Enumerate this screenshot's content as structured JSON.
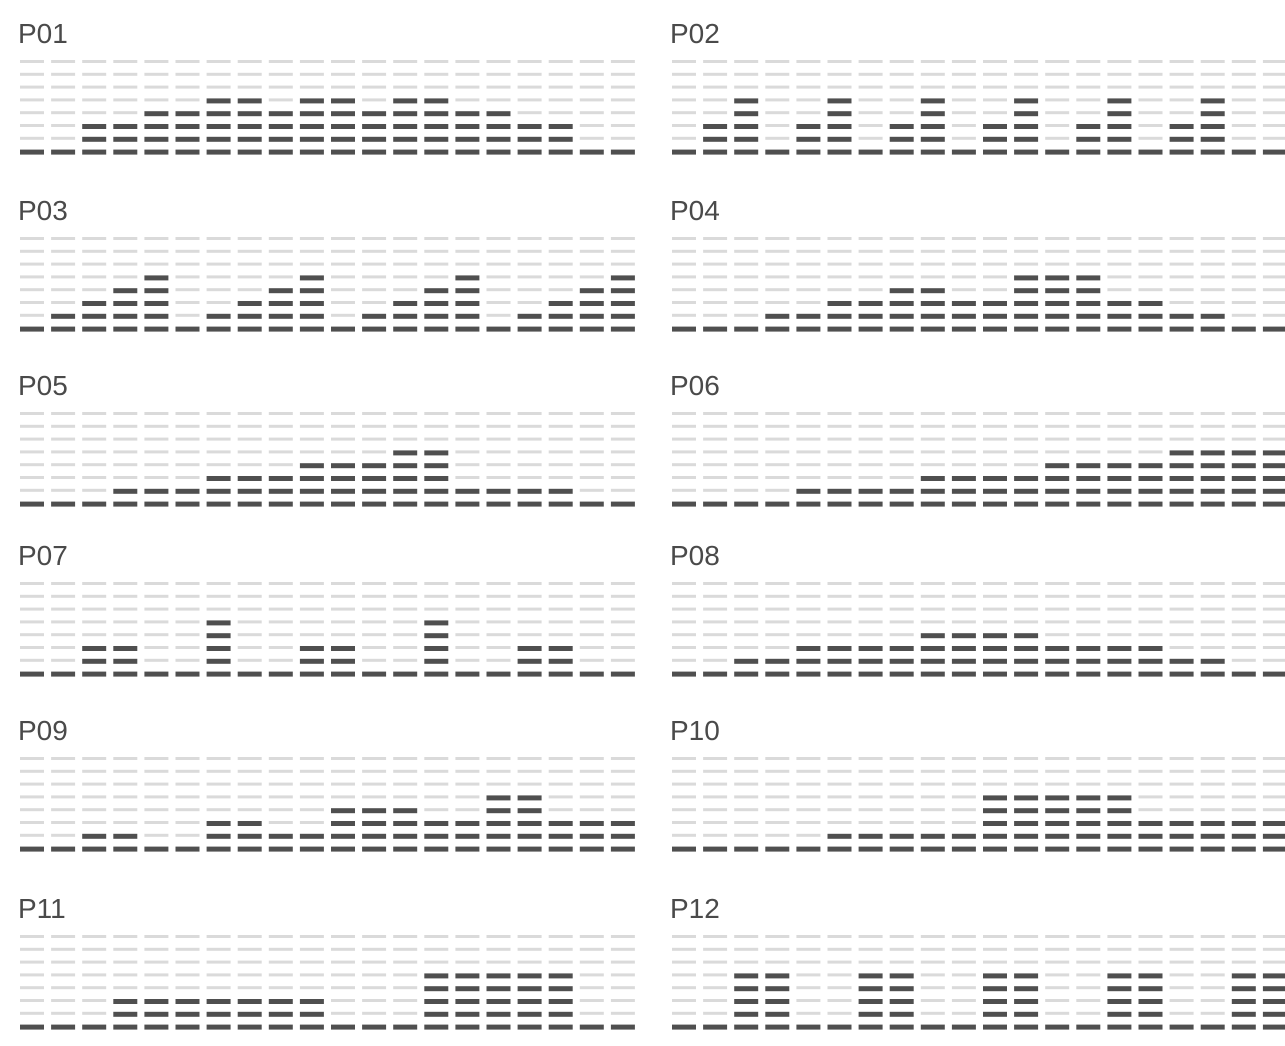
{
  "colors": {
    "active": "#4f4f4f",
    "inactive": "#dadada",
    "background": "#ffffff",
    "label": "#4a4a4a"
  },
  "chart_data": [
    {
      "type": "bar",
      "title": "P01",
      "segments_per_bar": 8,
      "values": [
        1,
        1,
        3,
        3,
        4,
        4,
        5,
        5,
        4,
        5,
        5,
        4,
        5,
        5,
        4,
        4,
        3,
        3,
        1,
        1
      ]
    },
    {
      "type": "bar",
      "title": "P02",
      "segments_per_bar": 8,
      "values": [
        1,
        3,
        5,
        1,
        3,
        5,
        1,
        3,
        5,
        1,
        3,
        5,
        1,
        3,
        5,
        1,
        3,
        5,
        1,
        1
      ]
    },
    {
      "type": "bar",
      "title": "P03",
      "segments_per_bar": 8,
      "values": [
        1,
        2,
        3,
        4,
        5,
        1,
        2,
        3,
        4,
        5,
        1,
        2,
        3,
        4,
        5,
        1,
        2,
        3,
        4,
        5
      ]
    },
    {
      "type": "bar",
      "title": "P04",
      "segments_per_bar": 8,
      "values": [
        1,
        1,
        1,
        2,
        2,
        3,
        3,
        4,
        4,
        3,
        3,
        5,
        5,
        5,
        3,
        3,
        2,
        2,
        1,
        1
      ]
    },
    {
      "type": "bar",
      "title": "P05",
      "segments_per_bar": 8,
      "values": [
        1,
        1,
        1,
        2,
        2,
        2,
        3,
        3,
        3,
        4,
        4,
        4,
        5,
        5,
        2,
        2,
        2,
        2,
        1,
        1
      ]
    },
    {
      "type": "bar",
      "title": "P06",
      "segments_per_bar": 8,
      "values": [
        1,
        1,
        1,
        1,
        2,
        2,
        2,
        2,
        3,
        3,
        3,
        3,
        4,
        4,
        4,
        4,
        5,
        5,
        5,
        5
      ]
    },
    {
      "type": "bar",
      "title": "P07",
      "segments_per_bar": 8,
      "values": [
        1,
        1,
        3,
        3,
        1,
        1,
        5,
        1,
        1,
        3,
        3,
        1,
        1,
        5,
        1,
        1,
        3,
        3,
        1,
        1
      ]
    },
    {
      "type": "bar",
      "title": "P08",
      "segments_per_bar": 8,
      "values": [
        1,
        1,
        2,
        2,
        3,
        3,
        3,
        3,
        4,
        4,
        4,
        4,
        3,
        3,
        3,
        3,
        2,
        2,
        1,
        1
      ]
    },
    {
      "type": "bar",
      "title": "P09",
      "segments_per_bar": 8,
      "values": [
        1,
        1,
        2,
        2,
        1,
        1,
        3,
        3,
        2,
        2,
        4,
        4,
        4,
        3,
        3,
        5,
        5,
        3,
        3,
        3
      ]
    },
    {
      "type": "bar",
      "title": "P10",
      "segments_per_bar": 8,
      "values": [
        1,
        1,
        1,
        1,
        1,
        2,
        2,
        2,
        2,
        2,
        5,
        5,
        5,
        5,
        5,
        3,
        3,
        3,
        3,
        3
      ]
    },
    {
      "type": "bar",
      "title": "P11",
      "segments_per_bar": 8,
      "values": [
        1,
        1,
        1,
        3,
        3,
        3,
        3,
        3,
        3,
        3,
        1,
        1,
        1,
        5,
        5,
        5,
        5,
        5,
        1,
        1
      ]
    },
    {
      "type": "bar",
      "title": "P12",
      "segments_per_bar": 8,
      "values": [
        1,
        1,
        5,
        5,
        1,
        1,
        5,
        5,
        1,
        1,
        5,
        5,
        1,
        1,
        5,
        5,
        1,
        1,
        5,
        5
      ]
    }
  ]
}
